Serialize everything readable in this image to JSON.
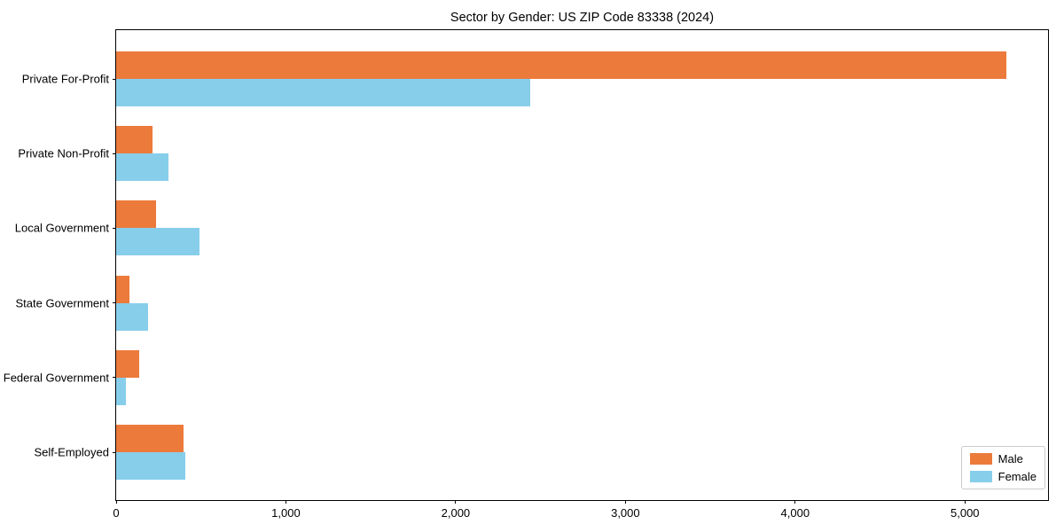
{
  "figure": {
    "background_color": "#ffffff"
  },
  "chart_data": {
    "type": "bar",
    "orientation": "horizontal",
    "title": "Sector by Gender: US ZIP Code 83338 (2024)",
    "xlabel": "",
    "ylabel": "",
    "grid": false,
    "categories": [
      "Private For-Profit",
      "Private Non-Profit",
      "Local Government",
      "State Government",
      "Federal Government",
      "Self-Employed"
    ],
    "series": [
      {
        "name": "Male",
        "color": "#EC7A3B",
        "values": [
          5245,
          215,
          235,
          80,
          135,
          395
        ]
      },
      {
        "name": "Female",
        "color": "#87CEEB",
        "values": [
          2440,
          310,
          490,
          190,
          60,
          410
        ]
      }
    ],
    "xlim": [
      0,
      5500
    ],
    "x_ticks": [
      {
        "value": 0,
        "label": "0"
      },
      {
        "value": 1000,
        "label": "1,000"
      },
      {
        "value": 2000,
        "label": "2,000"
      },
      {
        "value": 3000,
        "label": "3,000"
      },
      {
        "value": 4000,
        "label": "4,000"
      },
      {
        "value": 5000,
        "label": "5,000"
      }
    ],
    "legend": {
      "position": "lower right",
      "entries": [
        "Male",
        "Female"
      ]
    }
  }
}
